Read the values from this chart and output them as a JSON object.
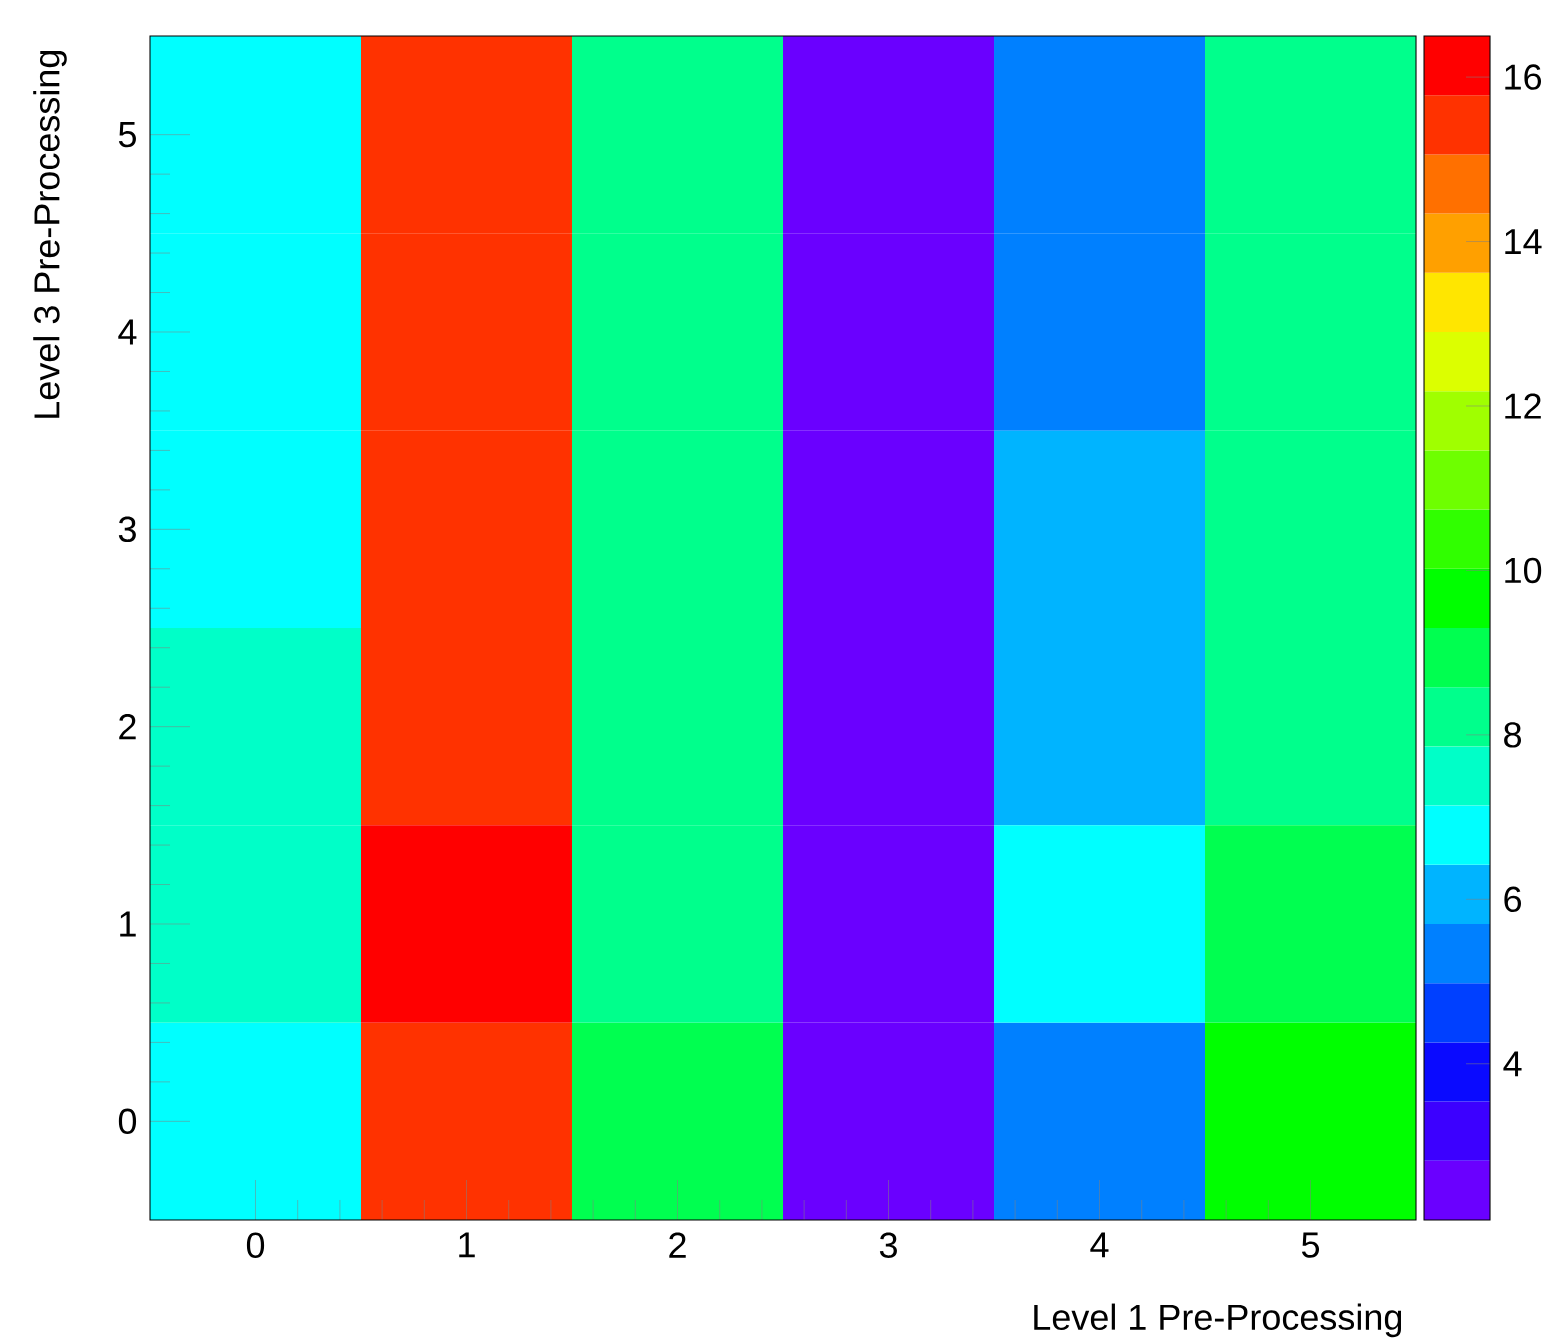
{
  "chart_data": {
    "type": "heatmap",
    "xlabel": "Level 1 Pre-Processing",
    "ylabel": "Level 3 Pre-Processing",
    "categories": [
      "0",
      "1",
      "2",
      "3",
      "4",
      "5"
    ],
    "y_categories": [
      "5",
      "4",
      "3",
      "2",
      "1",
      "0"
    ],
    "cells": [
      [
        6.8,
        15.4,
        8.2,
        2.5,
        5.3,
        8.2
      ],
      [
        6.8,
        15.4,
        8.2,
        2.5,
        5.3,
        8.2
      ],
      [
        6.8,
        15.4,
        8.2,
        2.5,
        6.1,
        8.2
      ],
      [
        7.5,
        15.4,
        8.2,
        2.5,
        6.1,
        8.2
      ],
      [
        7.5,
        16.1,
        8.2,
        2.5,
        6.8,
        9.0
      ],
      [
        6.8,
        15.4,
        9.0,
        2.5,
        5.3,
        9.7
      ]
    ],
    "clim": [
      2.1,
      16.5
    ],
    "cticks": [
      4,
      6,
      8,
      10,
      12,
      14,
      16
    ],
    "colors": [
      "#6a00ff",
      "#3c00ff",
      "#0a0aff",
      "#0040ff",
      "#0080ff",
      "#00b4ff",
      "#00ffff",
      "#00ffc8",
      "#00ff8c",
      "#00ff50",
      "#00ff00",
      "#30ff00",
      "#6eff00",
      "#a0ff00",
      "#dcff00",
      "#ffe600",
      "#ffa000",
      "#ff7000",
      "#ff3200",
      "#ff0000"
    ]
  }
}
